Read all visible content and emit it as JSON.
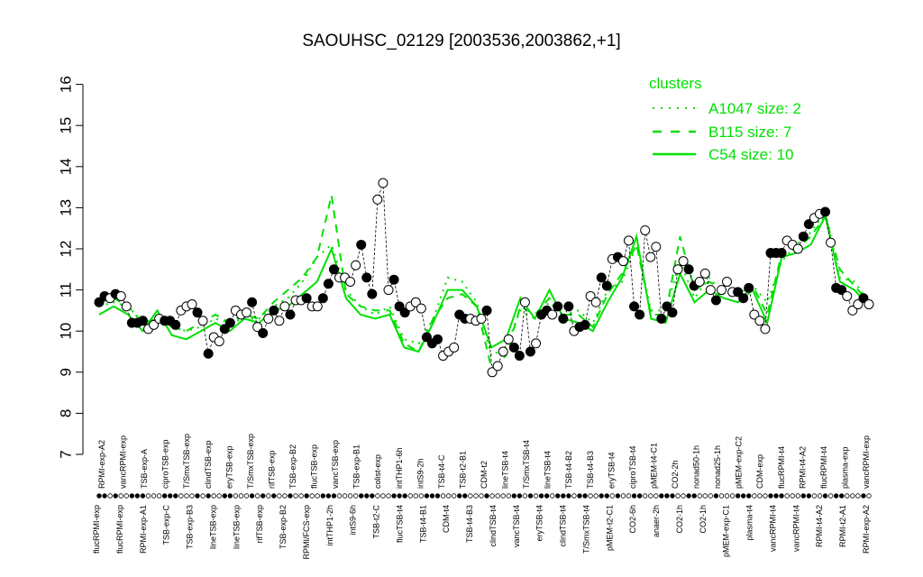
{
  "chart_data": {
    "type": "line",
    "title": "SAOUHSC_02129 [2003536,2003862,+1]",
    "xlabel": "",
    "ylabel": "",
    "ylim": [
      7,
      16
    ],
    "yticks": [
      7,
      8,
      9,
      10,
      11,
      12,
      13,
      14,
      15,
      16
    ],
    "grid": false,
    "legend": {
      "title": "clusters",
      "placement": "top-right",
      "entries": [
        {
          "label": "A1047 size: 2",
          "style": "dotted"
        },
        {
          "label": "B115 size: 7",
          "style": "dashed"
        },
        {
          "label": "C54 size: 10",
          "style": "solid"
        }
      ]
    },
    "colors": {
      "cluster_lines": "#00e000",
      "points_fill": "#000000",
      "open_points_fill": "#ffffff"
    },
    "x_labels_top": [
      "RPMI-exp-A2",
      "vancRPMI-exp",
      "TSB-exp-A",
      "ciproTSB-exp",
      "T/SmxTSB-exp",
      "clindTSB-exp",
      "eryTSB-exp",
      "T/SmxTSB-exp",
      "rifTSB-exp",
      "TSB-exp-B2",
      "flucTSB-exp",
      "vancTSB-exp",
      "TSB-exp-B1",
      "colist-exp",
      "intTHP1-6h",
      "intS9-2h",
      "TSB-t4-C",
      "TSB-t2-B1",
      "CDM-t2",
      "lineTSB-t4",
      "T/SmxTSB-t4",
      "lineTSB-t4",
      "TSB-t4-B2",
      "TSB-t4-B3",
      "eryTSB-t4",
      "ciproTSB-t4",
      "pMEM-t4-C1",
      "CO2-2h",
      "nonad50-1h",
      "nonad25-1h",
      "pMEM-exp-C2",
      "CDM-exp",
      "flucRPMI-t4",
      "RPMI-t4-A2",
      "flucRPMI-t4",
      "plasma-exp",
      "vancRPMI-exp"
    ],
    "x_labels_bottom": [
      "flucRPMI-exp",
      "flucRPMI-exp",
      "RPMI-exp-A1",
      "TSB-exp-C",
      "TSB-exp-B3",
      "lineTSB-exp",
      "lineTSB-exp",
      "rifTSB-exp",
      "TSB-exp-B2",
      "RPMI/FCS-exp",
      "intTHP1-2h",
      "intS9-6h",
      "TSB-t2-C",
      "flucTSB-t4",
      "TSB-t4-B1",
      "CDM-t4",
      "TSB-t4-B3",
      "clindTSB-t4",
      "vancTSB-t4",
      "eryTSB-t4",
      "clindTSB-t4",
      "T/SmxTSB-t4",
      "pMEM-t2-C1",
      "CO2-6h",
      "anaer-2h",
      "CO2-1h",
      "CO2-1h",
      "pMEM-exp-C1",
      "plasma-t4",
      "vancRPMI-t4",
      "vancRPMI-t4",
      "RPMI-t4-A2",
      "RPMI-t2-A1",
      "RPMI-exp-A2"
    ],
    "points": [
      {
        "x": 1,
        "y": 10.7,
        "filled": true
      },
      {
        "x": 2,
        "y": 10.85,
        "filled": true
      },
      {
        "x": 3,
        "y": 10.8,
        "filled": false
      },
      {
        "x": 4,
        "y": 10.9,
        "filled": true
      },
      {
        "x": 5,
        "y": 10.85,
        "filled": false
      },
      {
        "x": 6,
        "y": 10.6,
        "filled": false
      },
      {
        "x": 7,
        "y": 10.2,
        "filled": true
      },
      {
        "x": 8,
        "y": 10.2,
        "filled": true
      },
      {
        "x": 9,
        "y": 10.25,
        "filled": true
      },
      {
        "x": 10,
        "y": 10.05,
        "filled": false
      },
      {
        "x": 11,
        "y": 10.15,
        "filled": false
      },
      {
        "x": 12,
        "y": 10.3,
        "filled": false
      },
      {
        "x": 13,
        "y": 10.25,
        "filled": true
      },
      {
        "x": 14,
        "y": 10.25,
        "filled": true
      },
      {
        "x": 15,
        "y": 10.15,
        "filled": true
      },
      {
        "x": 16,
        "y": 10.5,
        "filled": false
      },
      {
        "x": 17,
        "y": 10.6,
        "filled": false
      },
      {
        "x": 18,
        "y": 10.65,
        "filled": false
      },
      {
        "x": 19,
        "y": 10.45,
        "filled": true
      },
      {
        "x": 20,
        "y": 10.25,
        "filled": false
      },
      {
        "x": 21,
        "y": 9.45,
        "filled": true
      },
      {
        "x": 22,
        "y": 9.85,
        "filled": false
      },
      {
        "x": 23,
        "y": 9.75,
        "filled": false
      },
      {
        "x": 24,
        "y": 10.05,
        "filled": true
      },
      {
        "x": 25,
        "y": 10.2,
        "filled": true
      },
      {
        "x": 26,
        "y": 10.5,
        "filled": false
      },
      {
        "x": 27,
        "y": 10.4,
        "filled": false
      },
      {
        "x": 28,
        "y": 10.45,
        "filled": false
      },
      {
        "x": 29,
        "y": 10.7,
        "filled": true
      },
      {
        "x": 30,
        "y": 10.1,
        "filled": false
      },
      {
        "x": 31,
        "y": 9.95,
        "filled": true
      },
      {
        "x": 32,
        "y": 10.3,
        "filled": false
      },
      {
        "x": 33,
        "y": 10.5,
        "filled": true
      },
      {
        "x": 34,
        "y": 10.25,
        "filled": false
      },
      {
        "x": 35,
        "y": 10.6,
        "filled": false
      },
      {
        "x": 36,
        "y": 10.4,
        "filled": true
      },
      {
        "x": 37,
        "y": 10.75,
        "filled": false
      },
      {
        "x": 38,
        "y": 10.75,
        "filled": false
      },
      {
        "x": 39,
        "y": 10.8,
        "filled": true
      },
      {
        "x": 40,
        "y": 10.6,
        "filled": false
      },
      {
        "x": 41,
        "y": 10.6,
        "filled": false
      },
      {
        "x": 42,
        "y": 10.8,
        "filled": true
      },
      {
        "x": 43,
        "y": 11.15,
        "filled": true
      },
      {
        "x": 44,
        "y": 11.5,
        "filled": true
      },
      {
        "x": 45,
        "y": 11.3,
        "filled": false
      },
      {
        "x": 46,
        "y": 11.3,
        "filled": false
      },
      {
        "x": 47,
        "y": 11.2,
        "filled": false
      },
      {
        "x": 48,
        "y": 11.6,
        "filled": false
      },
      {
        "x": 49,
        "y": 12.1,
        "filled": true
      },
      {
        "x": 50,
        "y": 11.3,
        "filled": true
      },
      {
        "x": 51,
        "y": 10.9,
        "filled": true
      },
      {
        "x": 52,
        "y": 13.2,
        "filled": false
      },
      {
        "x": 53,
        "y": 13.6,
        "filled": false
      },
      {
        "x": 54,
        "y": 11.0,
        "filled": false
      },
      {
        "x": 55,
        "y": 11.25,
        "filled": true
      },
      {
        "x": 56,
        "y": 10.6,
        "filled": true
      },
      {
        "x": 57,
        "y": 10.45,
        "filled": true
      },
      {
        "x": 58,
        "y": 10.6,
        "filled": false
      },
      {
        "x": 59,
        "y": 10.7,
        "filled": false
      },
      {
        "x": 60,
        "y": 10.55,
        "filled": false
      },
      {
        "x": 61,
        "y": 9.85,
        "filled": true
      },
      {
        "x": 62,
        "y": 9.7,
        "filled": true
      },
      {
        "x": 63,
        "y": 9.8,
        "filled": true
      },
      {
        "x": 64,
        "y": 9.4,
        "filled": false
      },
      {
        "x": 65,
        "y": 9.5,
        "filled": false
      },
      {
        "x": 66,
        "y": 9.6,
        "filled": false
      },
      {
        "x": 67,
        "y": 10.4,
        "filled": true
      },
      {
        "x": 68,
        "y": 10.3,
        "filled": true
      },
      {
        "x": 69,
        "y": 10.3,
        "filled": false
      },
      {
        "x": 70,
        "y": 10.25,
        "filled": false
      },
      {
        "x": 71,
        "y": 10.3,
        "filled": false
      },
      {
        "x": 72,
        "y": 10.5,
        "filled": true
      },
      {
        "x": 73,
        "y": 9.0,
        "filled": false
      },
      {
        "x": 74,
        "y": 9.15,
        "filled": false
      },
      {
        "x": 75,
        "y": 9.5,
        "filled": false
      },
      {
        "x": 76,
        "y": 9.8,
        "filled": false
      },
      {
        "x": 77,
        "y": 9.6,
        "filled": true
      },
      {
        "x": 78,
        "y": 9.4,
        "filled": true
      },
      {
        "x": 79,
        "y": 10.7,
        "filled": false
      },
      {
        "x": 80,
        "y": 9.5,
        "filled": true
      },
      {
        "x": 81,
        "y": 9.7,
        "filled": false
      },
      {
        "x": 82,
        "y": 10.4,
        "filled": true
      },
      {
        "x": 83,
        "y": 10.5,
        "filled": true
      },
      {
        "x": 84,
        "y": 10.4,
        "filled": false
      },
      {
        "x": 85,
        "y": 10.6,
        "filled": true
      },
      {
        "x": 86,
        "y": 10.3,
        "filled": true
      },
      {
        "x": 87,
        "y": 10.6,
        "filled": true
      },
      {
        "x": 88,
        "y": 10.0,
        "filled": false
      },
      {
        "x": 89,
        "y": 10.1,
        "filled": true
      },
      {
        "x": 90,
        "y": 10.15,
        "filled": true
      },
      {
        "x": 91,
        "y": 10.85,
        "filled": false
      },
      {
        "x": 92,
        "y": 10.7,
        "filled": false
      },
      {
        "x": 93,
        "y": 11.3,
        "filled": true
      },
      {
        "x": 94,
        "y": 11.1,
        "filled": true
      },
      {
        "x": 95,
        "y": 11.75,
        "filled": false
      },
      {
        "x": 96,
        "y": 11.8,
        "filled": true
      },
      {
        "x": 97,
        "y": 11.7,
        "filled": false
      },
      {
        "x": 98,
        "y": 12.2,
        "filled": false
      },
      {
        "x": 99,
        "y": 10.6,
        "filled": true
      },
      {
        "x": 100,
        "y": 10.4,
        "filled": true
      },
      {
        "x": 101,
        "y": 12.45,
        "filled": false
      },
      {
        "x": 102,
        "y": 11.8,
        "filled": false
      },
      {
        "x": 103,
        "y": 12.05,
        "filled": false
      },
      {
        "x": 104,
        "y": 10.3,
        "filled": true
      },
      {
        "x": 105,
        "y": 10.6,
        "filled": true
      },
      {
        "x": 106,
        "y": 10.45,
        "filled": true
      },
      {
        "x": 107,
        "y": 11.5,
        "filled": false
      },
      {
        "x": 108,
        "y": 11.7,
        "filled": false
      },
      {
        "x": 109,
        "y": 11.5,
        "filled": true
      },
      {
        "x": 110,
        "y": 11.1,
        "filled": true
      },
      {
        "x": 111,
        "y": 11.2,
        "filled": false
      },
      {
        "x": 112,
        "y": 11.4,
        "filled": false
      },
      {
        "x": 113,
        "y": 11.0,
        "filled": false
      },
      {
        "x": 114,
        "y": 10.75,
        "filled": true
      },
      {
        "x": 115,
        "y": 11.0,
        "filled": false
      },
      {
        "x": 116,
        "y": 11.2,
        "filled": false
      },
      {
        "x": 117,
        "y": 10.95,
        "filled": false
      },
      {
        "x": 118,
        "y": 10.95,
        "filled": true
      },
      {
        "x": 119,
        "y": 10.8,
        "filled": true
      },
      {
        "x": 120,
        "y": 11.05,
        "filled": true
      },
      {
        "x": 121,
        "y": 10.4,
        "filled": false
      },
      {
        "x": 122,
        "y": 10.25,
        "filled": false
      },
      {
        "x": 123,
        "y": 10.05,
        "filled": false
      },
      {
        "x": 124,
        "y": 11.9,
        "filled": true
      },
      {
        "x": 125,
        "y": 11.9,
        "filled": true
      },
      {
        "x": 126,
        "y": 11.9,
        "filled": true
      },
      {
        "x": 127,
        "y": 12.2,
        "filled": false
      },
      {
        "x": 128,
        "y": 12.1,
        "filled": false
      },
      {
        "x": 129,
        "y": 12.0,
        "filled": false
      },
      {
        "x": 130,
        "y": 12.3,
        "filled": true
      },
      {
        "x": 131,
        "y": 12.6,
        "filled": true
      },
      {
        "x": 132,
        "y": 12.75,
        "filled": false
      },
      {
        "x": 133,
        "y": 12.85,
        "filled": false
      },
      {
        "x": 134,
        "y": 12.9,
        "filled": true
      },
      {
        "x": 135,
        "y": 12.15,
        "filled": false
      },
      {
        "x": 136,
        "y": 11.05,
        "filled": true
      },
      {
        "x": 137,
        "y": 11.0,
        "filled": true
      },
      {
        "x": 138,
        "y": 10.85,
        "filled": false
      },
      {
        "x": 139,
        "y": 10.5,
        "filled": false
      },
      {
        "x": 140,
        "y": 10.65,
        "filled": false
      },
      {
        "x": 141,
        "y": 10.8,
        "filled": true
      },
      {
        "x": 142,
        "y": 10.65,
        "filled": false
      }
    ],
    "series": [
      {
        "name": "A1047 size: 2",
        "style": "dotted",
        "values": [
          10.6,
          10.7,
          10.6,
          10.2,
          10.2,
          10.1,
          10.0,
          10.1,
          10.3,
          10.2,
          10.3,
          10.3,
          10.6,
          10.8,
          11.2,
          11.8,
          12.1,
          11.0,
          10.6,
          10.4,
          10.6,
          9.8,
          9.7,
          10.3,
          11.3,
          11.2,
          10.7,
          9.4,
          9.6,
          10.5,
          10.3,
          10.7,
          10.4,
          10.5,
          10.2,
          11.0,
          11.2,
          12.1,
          10.5,
          10.5,
          11.7,
          10.8,
          11.3,
          10.9,
          10.9,
          11.1,
          10.7,
          11.7,
          12.1,
          12.4,
          12.9,
          11.3,
          11.2,
          10.7
        ]
      },
      {
        "name": "B115 size: 7",
        "style": "dashed",
        "values": [
          10.7,
          10.8,
          10.6,
          10.2,
          10.3,
          10.1,
          10.0,
          10.2,
          10.4,
          10.2,
          10.4,
          10.3,
          10.7,
          11.0,
          11.3,
          11.8,
          13.3,
          10.9,
          10.6,
          10.5,
          10.5,
          9.7,
          9.5,
          10.3,
          10.8,
          10.9,
          10.6,
          9.1,
          9.4,
          10.6,
          10.4,
          10.8,
          10.4,
          10.4,
          10.1,
          10.9,
          11.4,
          12.1,
          10.4,
          10.4,
          12.3,
          11.0,
          11.2,
          11.0,
          10.9,
          11.1,
          10.4,
          11.9,
          12.0,
          12.3,
          12.8,
          11.5,
          11.1,
          10.7
        ]
      },
      {
        "name": "C54 size: 10",
        "style": "solid",
        "values": [
          10.4,
          10.6,
          10.4,
          10.0,
          10.5,
          9.9,
          9.8,
          10.0,
          10.2,
          10.0,
          10.3,
          10.2,
          10.5,
          10.6,
          10.9,
          11.2,
          12.0,
          10.8,
          10.4,
          10.3,
          10.4,
          9.6,
          9.5,
          10.2,
          11.0,
          11.0,
          10.6,
          9.6,
          9.8,
          10.8,
          10.3,
          11.0,
          10.3,
          10.2,
          10.0,
          10.7,
          11.3,
          12.3,
          10.3,
          10.2,
          11.4,
          10.7,
          11.0,
          10.8,
          10.7,
          11.0,
          10.2,
          11.8,
          11.9,
          12.1,
          12.8,
          11.2,
          11.0,
          10.6
        ]
      }
    ]
  }
}
